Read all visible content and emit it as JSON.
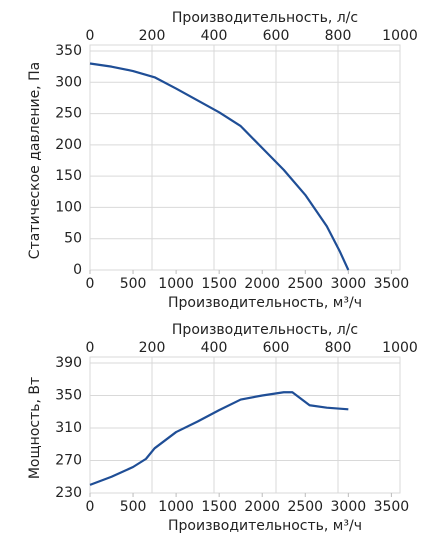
{
  "chart_data": [
    {
      "type": "line",
      "xlabel": "Производительность, м³/ч",
      "x2label": "Производительность, л/с",
      "ylabel": "Статическое давление, Па",
      "xlim": [
        0,
        3600
      ],
      "xticks": [
        0,
        500,
        1000,
        1500,
        2000,
        2500,
        3000,
        3500
      ],
      "x2lim": [
        0,
        1000
      ],
      "x2ticks": [
        0,
        200,
        400,
        600,
        800,
        1000
      ],
      "ylim": [
        0,
        350
      ],
      "yticks": [
        0,
        50,
        100,
        150,
        200,
        250,
        300,
        350
      ],
      "grid": true,
      "x": [
        0,
        250,
        500,
        750,
        1000,
        1250,
        1500,
        1750,
        2000,
        2250,
        2500,
        2750,
        2900,
        3000
      ],
      "series": [
        {
          "color": "#1f4e96",
          "values": [
            330,
            325,
            318,
            308,
            290,
            271,
            252,
            230,
            195,
            160,
            120,
            70,
            30,
            0
          ]
        }
      ]
    },
    {
      "type": "line",
      "xlabel": "Производительность, м³/ч",
      "x2label": "Производительность, л/с",
      "ylabel": "Мощность, Вт",
      "xlim": [
        0,
        3600
      ],
      "xticks": [
        0,
        500,
        1000,
        1500,
        2000,
        2500,
        3000,
        3500
      ],
      "x2lim": [
        0,
        1000
      ],
      "x2ticks": [
        0,
        200,
        400,
        600,
        800,
        1000
      ],
      "ylim": [
        230,
        390
      ],
      "yticks": [
        230,
        270,
        310,
        350,
        390
      ],
      "grid": true,
      "x": [
        0,
        250,
        500,
        650,
        750,
        1000,
        1250,
        1500,
        1750,
        2000,
        2250,
        2350,
        2450,
        2550,
        2750,
        3000
      ],
      "series": [
        {
          "color": "#1f4e96",
          "values": [
            240,
            250,
            262,
            272,
            285,
            305,
            318,
            332,
            345,
            350,
            354,
            354,
            346,
            338,
            335,
            333
          ]
        }
      ]
    }
  ]
}
